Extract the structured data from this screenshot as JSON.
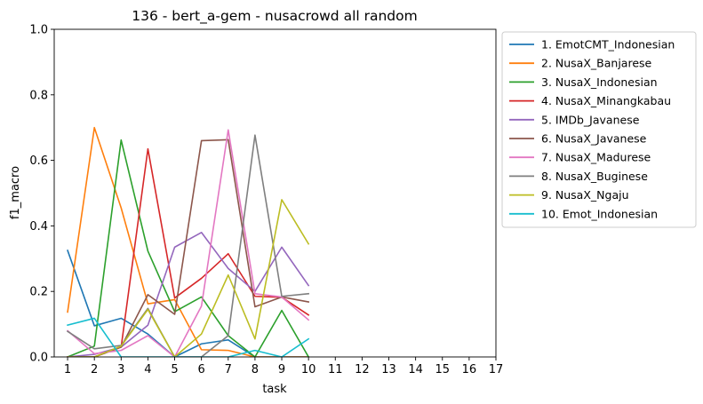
{
  "chart_data": {
    "type": "line",
    "title": "136 - bert_a-gem - nusacrowd all random",
    "xlabel": "task",
    "ylabel": "f1_macro",
    "xlim": [
      0.5,
      17
    ],
    "ylim": [
      0,
      1
    ],
    "xticks": [
      1,
      2,
      3,
      4,
      5,
      6,
      7,
      8,
      9,
      10,
      11,
      12,
      13,
      14,
      15,
      16,
      17
    ],
    "yticks": [
      0.0,
      0.2,
      0.4,
      0.6,
      0.8,
      1.0
    ],
    "ytick_labels": [
      "0.0",
      "0.2",
      "0.4",
      "0.6",
      "0.8",
      "1.0"
    ],
    "grid": false,
    "legend_position": "outside-right",
    "x": [
      1,
      2,
      3,
      4,
      5,
      6,
      7,
      8,
      9,
      10
    ],
    "series": [
      {
        "name": "1. EmotCMT_Indonesian",
        "color": "#1f77b4",
        "values": [
          0.325,
          0.095,
          0.118,
          0.07,
          0.0,
          0.04,
          0.052,
          0.0,
          0.0,
          0.0
        ]
      },
      {
        "name": "2. NusaX_Banjarese",
        "color": "#ff7f0e",
        "values": [
          0.137,
          0.7,
          0.455,
          0.162,
          0.175,
          0.022,
          0.02,
          0.0,
          0.0,
          0.0
        ]
      },
      {
        "name": "3. NusaX_Indonesian",
        "color": "#2ca02c",
        "values": [
          0.0,
          0.033,
          0.662,
          0.323,
          0.138,
          0.183,
          0.065,
          0.0,
          0.142,
          0.0
        ]
      },
      {
        "name": "4. NusaX_Minangkabau",
        "color": "#d62728",
        "values": [
          0.0,
          0.0,
          0.03,
          0.635,
          0.18,
          0.24,
          0.315,
          0.185,
          0.182,
          0.128
        ]
      },
      {
        "name": "5. IMDb_Javanese",
        "color": "#9467bd",
        "values": [
          0.0,
          0.008,
          0.03,
          0.097,
          0.335,
          0.38,
          0.27,
          0.2,
          0.335,
          0.218
        ]
      },
      {
        "name": "6. NusaX_Javanese",
        "color": "#8c564b",
        "values": [
          0.0,
          0.0,
          0.03,
          0.19,
          0.13,
          0.66,
          0.663,
          0.153,
          0.183,
          0.168
        ]
      },
      {
        "name": "7. NusaX_Madurese",
        "color": "#e377c2",
        "values": [
          0.08,
          0.01,
          0.02,
          0.065,
          0.0,
          0.155,
          0.693,
          0.193,
          0.183,
          0.113
        ]
      },
      {
        "name": "8. NusaX_Buginese",
        "color": "#7f7f7f",
        "values": [
          0.078,
          0.025,
          0.035,
          0.148,
          0.0,
          0.0,
          0.065,
          0.677,
          0.185,
          0.193
        ]
      },
      {
        "name": "9. NusaX_Ngaju",
        "color": "#bcbd22",
        "values": [
          0.0,
          0.0,
          0.033,
          0.145,
          0.0,
          0.07,
          0.25,
          0.055,
          0.48,
          0.345
        ]
      },
      {
        "name": "10. Emot_Indonesian",
        "color": "#17becf",
        "values": [
          0.097,
          0.118,
          0.0,
          0.0,
          0.0,
          0.0,
          0.0,
          0.02,
          0.0,
          0.055
        ]
      }
    ]
  }
}
